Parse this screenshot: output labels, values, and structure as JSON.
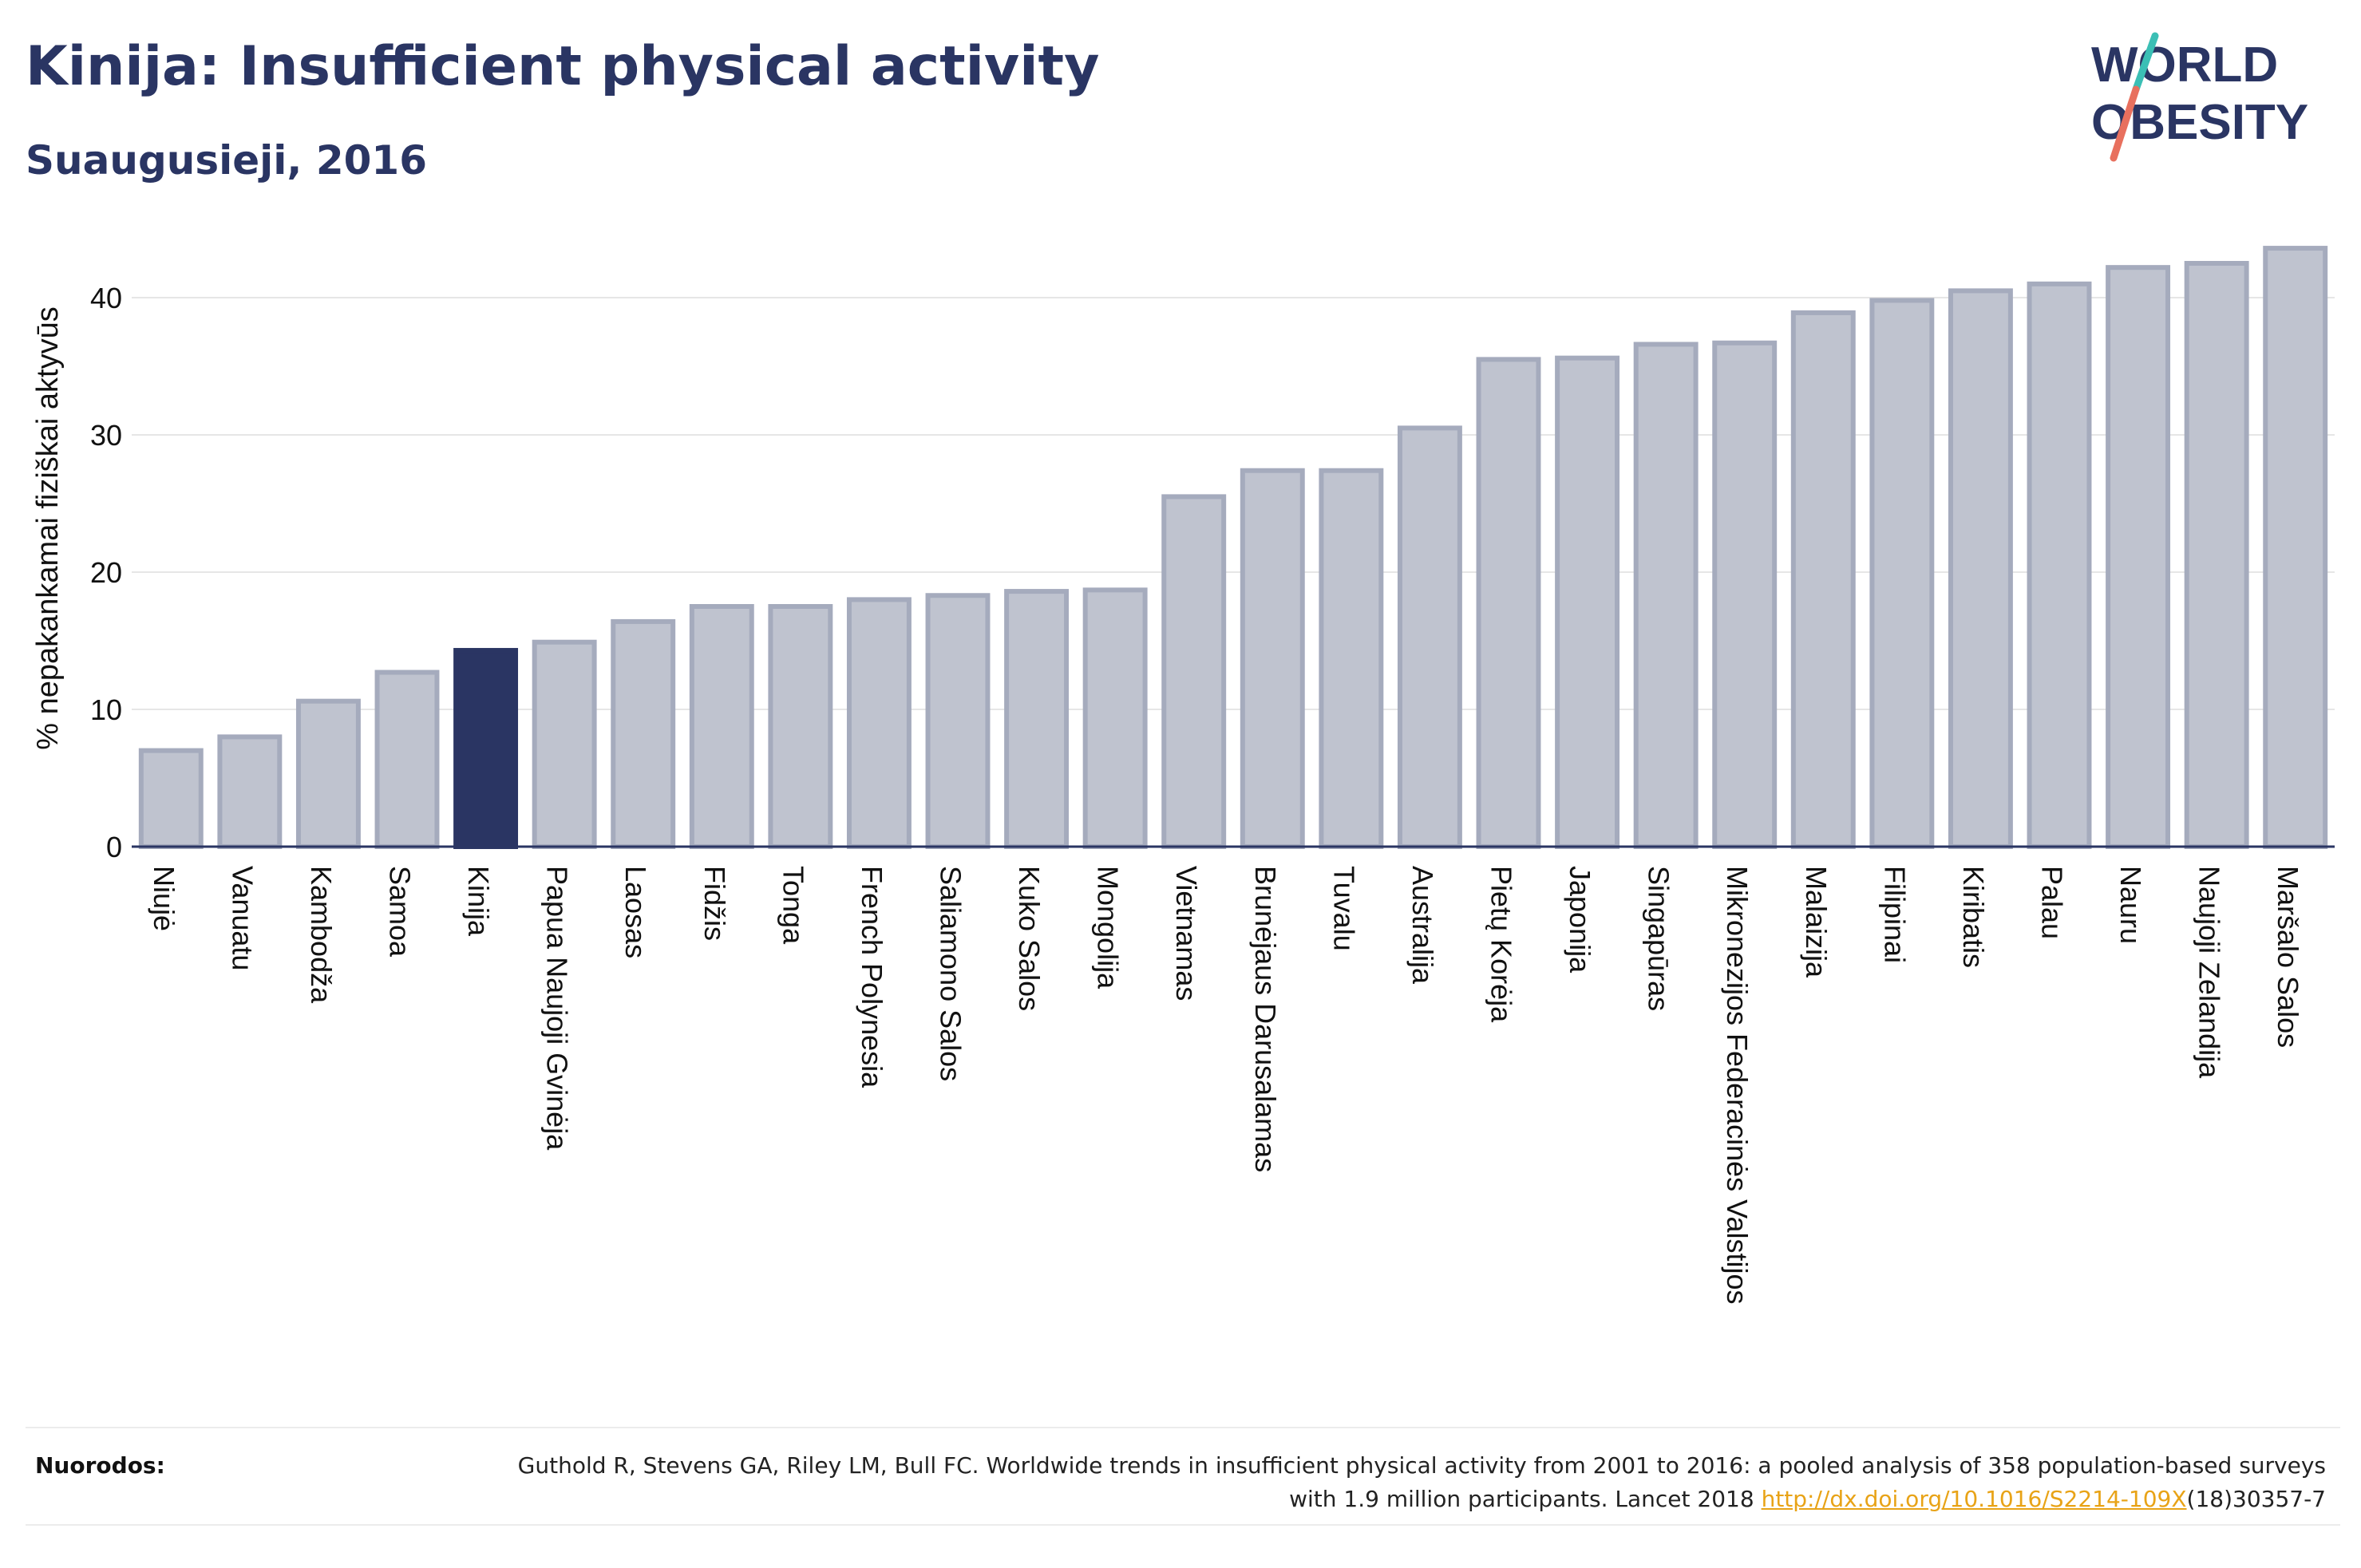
{
  "header": {
    "title": "Kinija: Insufficient physical activity",
    "subtitle": "Suaugusieji, 2016"
  },
  "logo": {
    "line1": "WORLD",
    "line2": "OBESITY",
    "accent_teal": "#3bbfb5",
    "accent_red": "#e8705e"
  },
  "footer": {
    "refs_label": "Nuorodos:",
    "ref_text_before": "Guthold R, Stevens GA, Riley LM, Bull FC. Worldwide trends in insufficient physical activity from 2001 to 2016: a pooled analysis of 358 population-based surveys with 1.9 million participants. Lancet 2018 ",
    "ref_link": "http://dx.doi.org/10.1016/S2214-109X",
    "ref_text_after": "(18)30357-7"
  },
  "chart_data": {
    "type": "bar",
    "title": "Kinija: Insufficient physical activity",
    "subtitle": "Suaugusieji, 2016",
    "ylabel": "% nepakankamai fiziškai aktyvūs",
    "xlabel": "",
    "ylim": [
      0,
      45
    ],
    "yticks": [
      0,
      10,
      20,
      30,
      40
    ],
    "grid": true,
    "highlight": "Kinija",
    "colors": {
      "bar": "#bfc3cf",
      "bar_stroke": "#a5abbd",
      "highlight": "#2a3563",
      "grid": "#e6e6e6",
      "axis": "#2a3563"
    },
    "categories": [
      "Niujė",
      "Vanuatu",
      "Kambodža",
      "Samoa",
      "Kinija",
      "Papua Naujoji Gvinėja",
      "Laosas",
      "Fidžis",
      "Tonga",
      "French Polynesia",
      "Saliamono Salos",
      "Kuko Salos",
      "Mongolija",
      "Vietnamas",
      "Brunėjaus Darusalamas",
      "Tuvalu",
      "Australija",
      "Pietų Korėja",
      "Japonija",
      "Singapūras",
      "Mikronezijos Federacinės Valstijos",
      "Malaizija",
      "Filipinai",
      "Kiribatis",
      "Palau",
      "Nauru",
      "Naujoji Zelandija",
      "Maršalo Salos"
    ],
    "values": [
      7.0,
      8.0,
      10.6,
      12.7,
      14.3,
      14.9,
      16.4,
      17.5,
      17.5,
      18.0,
      18.3,
      18.6,
      18.7,
      25.5,
      27.4,
      27.4,
      30.5,
      35.5,
      35.6,
      36.6,
      36.7,
      38.9,
      39.8,
      40.5,
      41.0,
      42.2,
      42.5,
      43.6
    ]
  }
}
